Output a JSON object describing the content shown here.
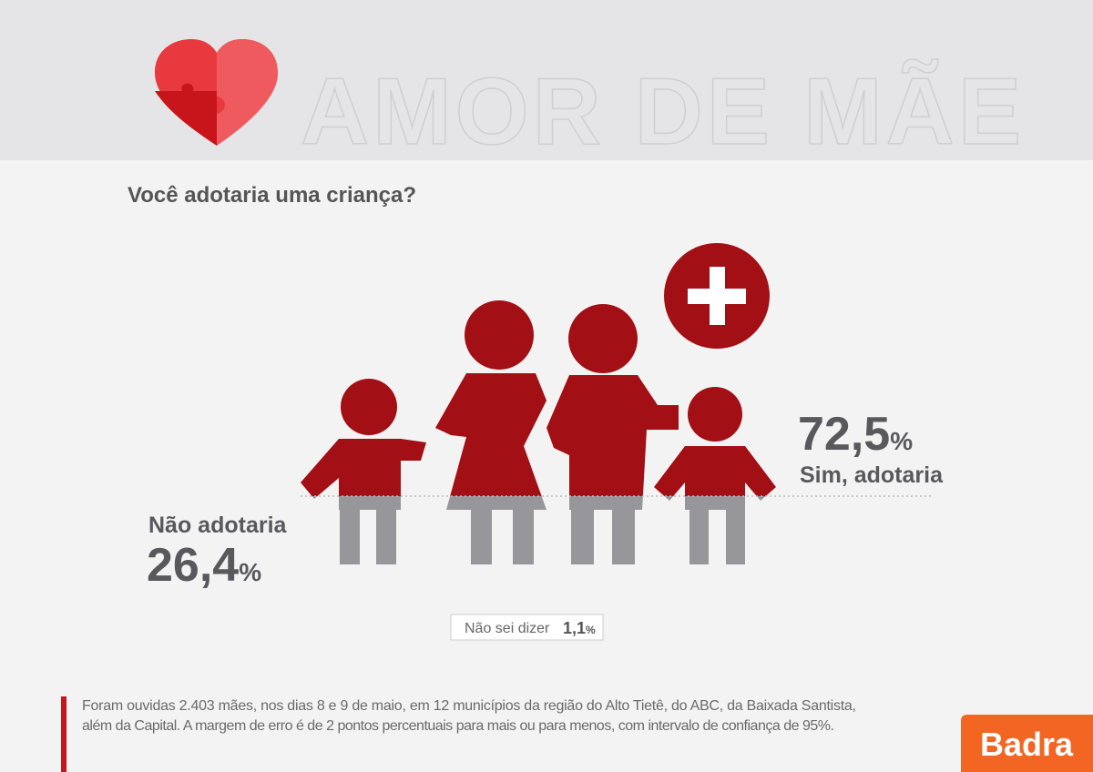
{
  "header": {
    "title": "AMOR DE MÃE"
  },
  "question": "Você adotaria uma criança?",
  "unit": "%",
  "results": {
    "yes": {
      "value": "72,5",
      "label": "Sim, adotaria"
    },
    "no": {
      "label": "Não adotaria",
      "value": "26,4"
    },
    "unsure": {
      "label": "Não sei dizer",
      "value": "1,1"
    }
  },
  "footnote": [
    "Foram ouvidas 2.403 mães, nos dias 8 e 9 de maio, em 12 municípios da região do Alto Tietê, do ABC, da Baixada Santista,",
    "além da Capital. A margem de erro é de 2 pontos percentuais para mais ou para menos, com intervalo de confiança de 95%."
  ],
  "logo": "Badra"
}
